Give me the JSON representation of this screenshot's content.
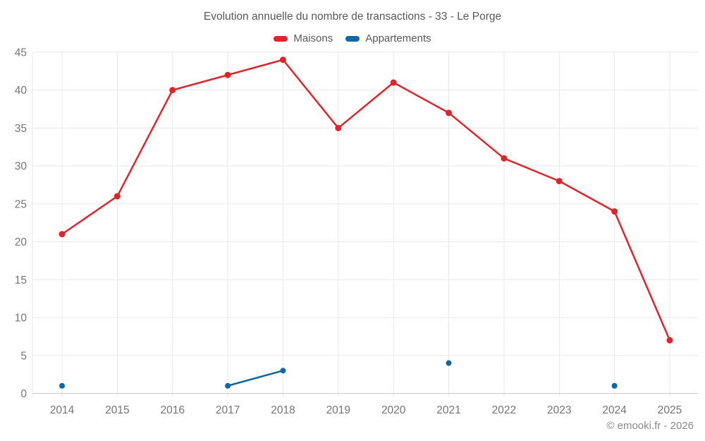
{
  "page": {
    "footer": "© emooki.fr - 2026",
    "background": "#ffffff"
  },
  "chart_data": {
    "type": "line",
    "title": "Evolution annuelle du nombre de transactions - 33 - Le Porge",
    "categories": [
      "2014",
      "2015",
      "2016",
      "2017",
      "2018",
      "2019",
      "2020",
      "2021",
      "2022",
      "2023",
      "2024",
      "2025"
    ],
    "series": [
      {
        "name": "Maisons",
        "color": "#e0242a",
        "values": [
          21,
          26,
          40,
          42,
          44,
          35,
          41,
          37,
          31,
          28,
          24,
          7
        ]
      },
      {
        "name": "Appartements",
        "color": "#0e68a0",
        "values": [
          1,
          null,
          null,
          1,
          3,
          null,
          null,
          4,
          null,
          null,
          1,
          null
        ]
      }
    ],
    "ylabel": "",
    "xlabel": "",
    "ylim": [
      0,
      45
    ],
    "y_tick_step": 5,
    "y_tick_labels": [
      "0",
      "5",
      "10",
      "15",
      "20",
      "25",
      "30",
      "35",
      "40",
      "45"
    ],
    "grid": true,
    "legend_position": "top",
    "colors": {
      "grid": "#e9e9e9",
      "axis": "#c9c9c9",
      "title_text": "#595959",
      "tick_text": "#757575",
      "footer_text": "#8a8a8a"
    }
  }
}
